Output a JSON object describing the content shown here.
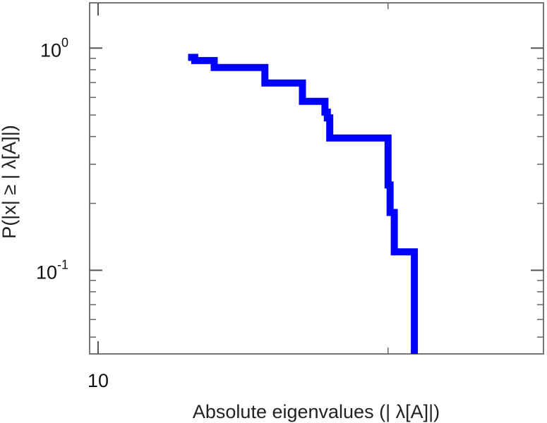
{
  "chart_data": {
    "type": "line",
    "step": true,
    "xlabel": "Absolute eigenvalues (|     λ[A]|)",
    "ylabel": "P(|x|  ≥ | λ[A]|)",
    "xscale": "log",
    "yscale": "log",
    "xlim": [
      9.8,
      29
    ],
    "ylim": [
      0.042,
      1.6
    ],
    "grid": false,
    "x_ticks": [
      {
        "value": 10,
        "label": "10"
      }
    ],
    "y_ticks": [
      {
        "value": 1,
        "base": "10",
        "exp": "0"
      },
      {
        "value": 0.1,
        "base": "10",
        "exp": "-1"
      }
    ],
    "series": [
      {
        "color": "#0000ff",
        "x": [
          12.4,
          12.6,
          13.2,
          14.9,
          16.3,
          17.2,
          17.3,
          17.4,
          19.9,
          20.0,
          20.1,
          20.3,
          21.3
        ],
        "y": [
          0.909,
          0.879,
          0.818,
          0.697,
          0.576,
          0.515,
          0.485,
          0.394,
          0.394,
          0.242,
          0.182,
          0.121,
          0.045
        ]
      }
    ]
  }
}
